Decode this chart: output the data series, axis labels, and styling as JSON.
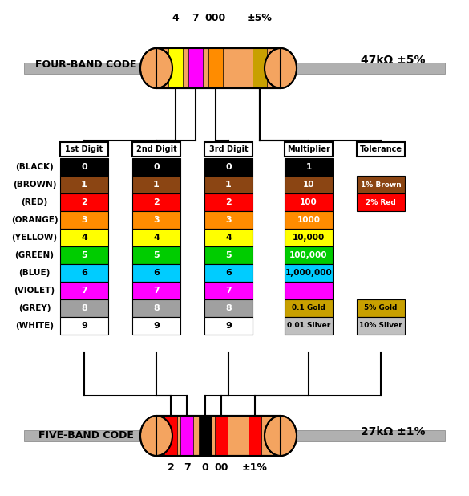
{
  "title_top": "4  7  000  ±5%",
  "label_four_band": "FOUR-BAND CODE",
  "label_four_value": "47kΩ ±5%",
  "label_five_band": "FIVE-BAND CODE",
  "label_five_value": "27kΩ ±1%",
  "title_bottom": "2  7  0  00  ±1%",
  "col_headers": [
    "1st Digit",
    "2nd Digit",
    "3rd Digit",
    "Multiplier",
    "Tolerance"
  ],
  "color_names": [
    "(BLACK)",
    "(BROWN)",
    "(RED)",
    "(ORANGE)",
    "(YELLOW)",
    "(GREEN)",
    "(BLUE)",
    "(VIOLET)",
    "(GREY)",
    "(WHITE)"
  ],
  "band_colors": [
    "#000000",
    "#8B4513",
    "#FF0000",
    "#FF8C00",
    "#FFFF00",
    "#00CC00",
    "#00CCFF",
    "#FF00FF",
    "#A0A0A0",
    "#FFFFFF"
  ],
  "band_text_colors": [
    "#FFFFFF",
    "#FFFFFF",
    "#FFFFFF",
    "#FFFFFF",
    "#000000",
    "#FFFFFF",
    "#000000",
    "#FFFFFF",
    "#FFFFFF",
    "#000000"
  ],
  "digit_values": [
    [
      "0",
      "1",
      "2",
      "3",
      "4",
      "5",
      "6",
      "7",
      "8",
      "9"
    ],
    [
      "0",
      "1",
      "2",
      "3",
      "4",
      "5",
      "6",
      "7",
      "8",
      "9"
    ],
    [
      "0",
      "1",
      "2",
      "3",
      "4",
      "5",
      "6",
      "7",
      "8",
      "9"
    ]
  ],
  "multiplier_values": [
    "1",
    "10",
    "100",
    "1000",
    "10,000",
    "100,000",
    "1,000,000",
    "",
    "0.1 Gold",
    "0.01 Silver"
  ],
  "multiplier_colors": [
    "#000000",
    "#8B4513",
    "#FF0000",
    "#FF8C00",
    "#FFFF00",
    "#00CC00",
    "#00CCFF",
    "#FF00FF",
    "#C8A000",
    "#C0C0C0"
  ],
  "multiplier_text_colors": [
    "#FFFFFF",
    "#FFFFFF",
    "#FFFFFF",
    "#FFFFFF",
    "#000000",
    "#FFFFFF",
    "#000000",
    "#FFFFFF",
    "#000000",
    "#000000"
  ],
  "tolerance_entries": [
    {
      "label": "1% Brown",
      "bg": "#8B4513",
      "fg": "#FFFFFF"
    },
    {
      "label": "2% Red",
      "bg": "#FF0000",
      "fg": "#FFFFFF"
    },
    {
      "label": "5% Gold",
      "bg": "#C8A000",
      "fg": "#000000"
    },
    {
      "label": "10% Silver",
      "bg": "#C0C0C0",
      "fg": "#000000"
    }
  ],
  "resistor_body_color": "#F4A460",
  "resistor_lead_color": "#C0C0C0",
  "bg_color": "#FFFFFF"
}
